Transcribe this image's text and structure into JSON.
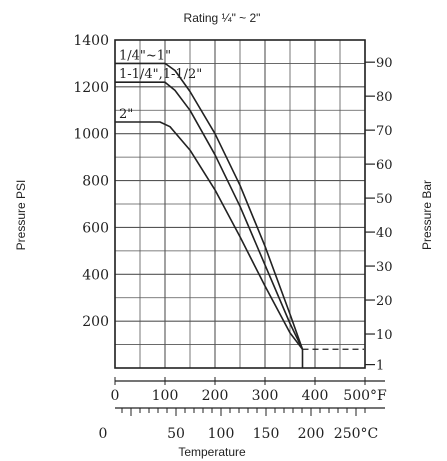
{
  "chart_data": {
    "type": "line",
    "title": "Rating ¼\" ~ 2\"",
    "xlabel": "Temperature",
    "ylabel_left": "Pressure PSI",
    "ylabel_right": "Pressure Bar",
    "x_unit_primary": "°F",
    "x_unit_secondary": "°C",
    "xlim": [
      0,
      500
    ],
    "ylim": [
      0,
      1400
    ],
    "grid": true,
    "y_ticks_psi": [
      200,
      400,
      600,
      800,
      1000,
      1200,
      1400
    ],
    "y_ticks_bar": [
      1,
      10,
      20,
      30,
      40,
      50,
      60,
      70,
      80,
      90
    ],
    "x_ticks_f": [
      0,
      100,
      200,
      300,
      400,
      500
    ],
    "x_ticks_c": [
      0,
      50,
      100,
      150,
      200,
      250
    ],
    "x_tick_labels_f": [
      "0",
      "100",
      "200",
      "300",
      "400",
      "500°F"
    ],
    "x_tick_labels_c": [
      "0",
      "50",
      "100",
      "150",
      "200",
      "250°C"
    ],
    "series": [
      {
        "name": "1/4\"~1\"",
        "points": [
          [
            0,
            1300
          ],
          [
            100,
            1300
          ],
          [
            120,
            1270
          ],
          [
            150,
            1180
          ],
          [
            200,
            1000
          ],
          [
            250,
            780
          ],
          [
            300,
            520
          ],
          [
            350,
            230
          ],
          [
            375,
            80
          ]
        ]
      },
      {
        "name": "1-1/4\",1-1/2\"",
        "points": [
          [
            0,
            1220
          ],
          [
            100,
            1220
          ],
          [
            120,
            1185
          ],
          [
            150,
            1100
          ],
          [
            200,
            910
          ],
          [
            250,
            690
          ],
          [
            300,
            440
          ],
          [
            350,
            190
          ],
          [
            375,
            80
          ]
        ]
      },
      {
        "name": "2\"",
        "points": [
          [
            0,
            1050
          ],
          [
            90,
            1050
          ],
          [
            110,
            1030
          ],
          [
            150,
            930
          ],
          [
            200,
            760
          ],
          [
            250,
            560
          ],
          [
            300,
            350
          ],
          [
            350,
            150
          ],
          [
            375,
            80
          ]
        ]
      }
    ],
    "dashed_line": {
      "points": [
        [
          375,
          80
        ],
        [
          470,
          80
        ]
      ]
    },
    "colors": {
      "line": "#222222",
      "grid": "#555555",
      "background": "#ffffff"
    }
  }
}
